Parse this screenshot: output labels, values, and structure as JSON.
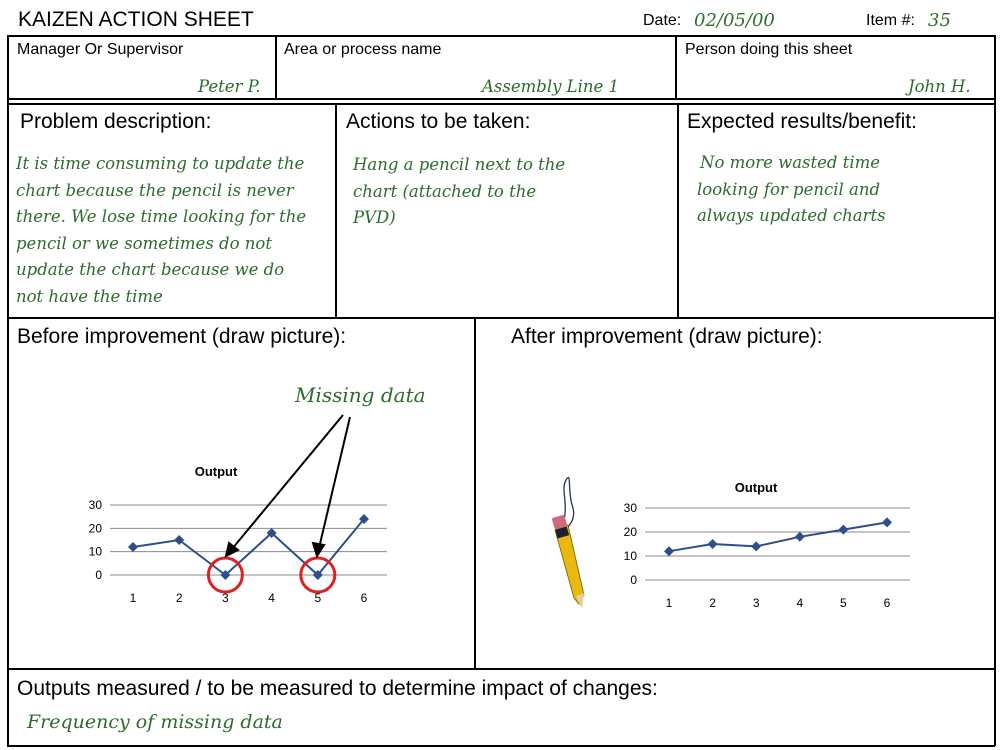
{
  "header": {
    "title": "KAIZEN ACTION SHEET",
    "date_label": "Date:",
    "date_value": "02/05/00",
    "item_label": "Item #:",
    "item_value": "35"
  },
  "info": {
    "manager_label": "Manager Or Supervisor",
    "manager_value": "Peter P.",
    "area_label": "Area or process name",
    "area_value": "Assembly Line 1",
    "person_label": "Person doing this sheet",
    "person_value": "John H."
  },
  "sections": {
    "problem_title": "Problem description:",
    "problem_lines": [
      "It is time consuming to update the",
      "chart because the pencil is never",
      "there. We lose time looking for the",
      "pencil or we sometimes do not",
      "update the chart because we do",
      "not have the time"
    ],
    "actions_title": "Actions to be taken:",
    "actions_lines": [
      "Hang a pencil next to the",
      "chart (attached to the",
      "PVD)"
    ],
    "results_title": "Expected results/benefit:",
    "results_lines": [
      "No more wasted time",
      "looking for pencil and",
      "always updated charts"
    ],
    "before_title": "Before improvement  (draw picture):",
    "after_title": "After improvement  (draw picture):",
    "missing_label": "Missing data",
    "outputs_title": "Outputs measured / to be measured to determine impact of changes:",
    "outputs_value": "Frequency of missing data"
  },
  "chart_data": [
    {
      "type": "line",
      "title": "Output",
      "x": [
        1,
        2,
        3,
        4,
        5,
        6
      ],
      "series": [
        {
          "values": [
            12,
            15,
            0,
            18,
            0,
            24
          ]
        }
      ],
      "ylim": [
        0,
        30
      ],
      "yticks": [
        0,
        10,
        20,
        30
      ],
      "grid": true,
      "color": "#2e4e8a",
      "highlight_color": "#e02020",
      "highlighted_x": [
        3,
        5
      ]
    },
    {
      "type": "line",
      "title": "Output",
      "x": [
        1,
        2,
        3,
        4,
        5,
        6
      ],
      "series": [
        {
          "values": [
            12,
            15,
            14,
            18,
            21,
            24
          ]
        }
      ],
      "ylim": [
        0,
        30
      ],
      "yticks": [
        0,
        10,
        20,
        30
      ],
      "grid": true,
      "color": "#2e4e8a"
    }
  ]
}
